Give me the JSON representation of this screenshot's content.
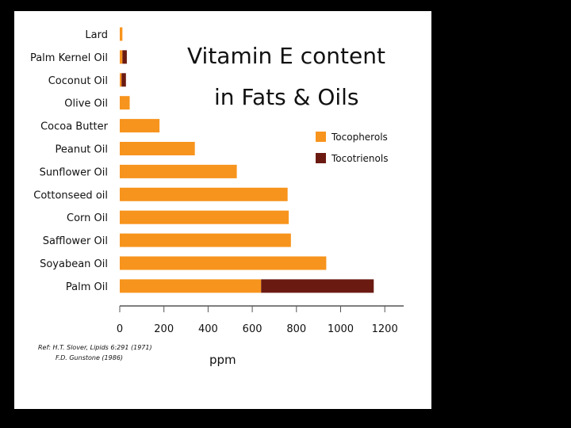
{
  "chart_data": {
    "type": "bar",
    "orientation": "horizontal",
    "stacked": true,
    "title_lines": [
      "Vitamin E content",
      "in Fats & Oils"
    ],
    "categories": [
      "Lard",
      "Palm Kernel Oil",
      "Coconut Oil",
      "Olive Oil",
      "Cocoa Butter",
      "Peanut Oil",
      "Sunflower Oil",
      "Cottonseed oil",
      "Corn Oil",
      "Safflower Oil",
      "Soyabean Oil",
      "Palm Oil"
    ],
    "series": [
      {
        "name": "Tocopherols",
        "color": "#f7941d",
        "values": [
          12,
          12,
          8,
          45,
          180,
          340,
          530,
          760,
          765,
          775,
          935,
          640
        ]
      },
      {
        "name": "Tocotrienols",
        "color": "#6b1a12",
        "values": [
          0,
          20,
          20,
          0,
          0,
          0,
          0,
          0,
          0,
          0,
          0,
          510
        ]
      }
    ],
    "xlim": [
      0,
      1250
    ],
    "xticks": [
      0,
      200,
      400,
      600,
      800,
      1000,
      1200
    ],
    "xlabel": "ppm",
    "legend_position": "right",
    "grid": false
  },
  "reference": [
    "Ref: H.T. Slover, Lipids 6:291 (1971)",
    "F.D. Gunstone (1986)"
  ]
}
